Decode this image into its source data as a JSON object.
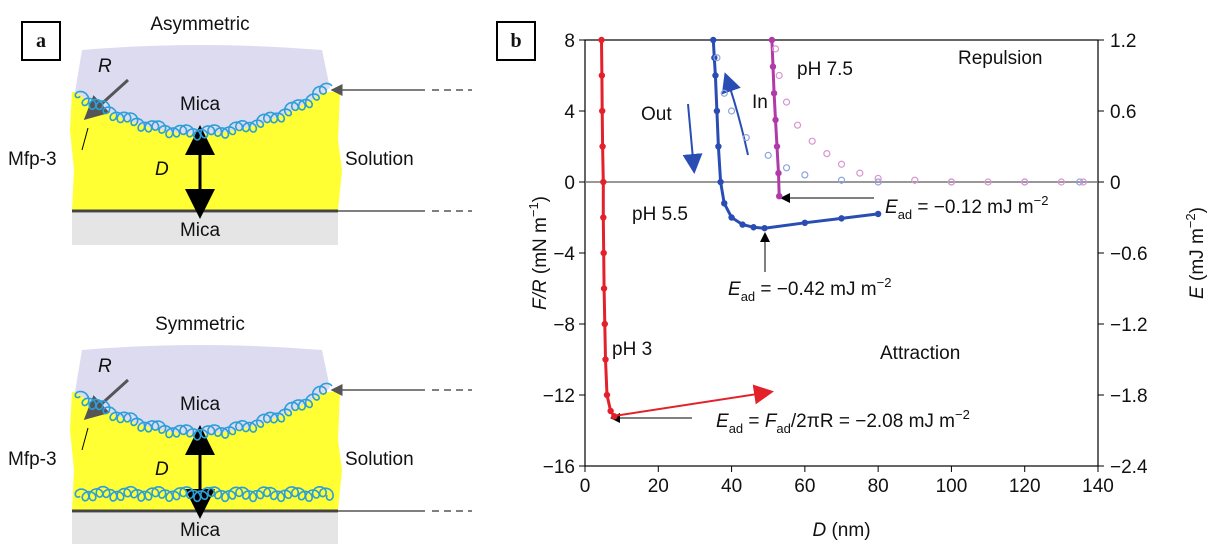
{
  "panel_a": {
    "label": "a",
    "top": {
      "title": "Asymmetric",
      "radius": "R",
      "upper_surface": "Mica",
      "coating": "Mfp-3",
      "distance": "D",
      "medium": "Solution",
      "lower_surface": "Mica"
    },
    "bottom": {
      "title": "Symmetric",
      "radius": "R",
      "upper_surface": "Mica",
      "coating": "Mfp-3",
      "distance": "D",
      "medium": "Solution",
      "lower_surface": "Mica"
    }
  },
  "chart_data": {
    "type": "scatter",
    "panel_label": "b",
    "xlabel": [
      {
        "text": "D",
        "style": "italic"
      },
      {
        "text": " (nm)"
      }
    ],
    "ylabel": [
      {
        "text": "F/R",
        "style": "italic"
      },
      {
        "text": " (mN m"
      },
      {
        "text": "−1",
        "style": "sup"
      },
      {
        "text": ")"
      }
    ],
    "y2label": [
      {
        "text": "E",
        "style": "italic"
      },
      {
        "text": " (mJ m"
      },
      {
        "text": "−2",
        "style": "sup"
      },
      {
        "text": ")"
      }
    ],
    "xlim": [
      0,
      140
    ],
    "xticks": [
      0,
      20,
      40,
      60,
      80,
      100,
      120,
      140
    ],
    "ylim": [
      -16,
      8
    ],
    "yticks": [
      8,
      4,
      0,
      {
        "value": -4,
        "label": "−4"
      },
      {
        "value": -8,
        "label": "−8"
      },
      {
        "value": -12,
        "label": "−12"
      },
      {
        "value": -16,
        "label": "−16"
      }
    ],
    "y2lim": [
      -2.4,
      1.2
    ],
    "y2ticks": [
      1.2,
      0.6,
      0,
      {
        "value": -0.6,
        "label": "−0.6"
      },
      {
        "value": -1.2,
        "label": "−1.2"
      },
      {
        "value": -1.8,
        "label": "−1.8"
      },
      {
        "value": -2.4,
        "label": "−2.4"
      }
    ],
    "zero_line": true,
    "series": [
      {
        "name": "pH 3",
        "color": "#e3212b",
        "filled": true,
        "x": [
          4.5,
          4.6,
          4.7,
          4.8,
          5,
          5,
          5.1,
          5.2,
          5.4,
          5.6,
          6,
          7,
          8
        ],
        "values": [
          8,
          6,
          4,
          2,
          0,
          -2,
          -4,
          -6,
          -8,
          -10,
          -12,
          -12.9,
          -13.2
        ]
      },
      {
        "name": "pH 5.5",
        "color": "#2a4db3",
        "filled": true,
        "x": [
          35,
          35.3,
          35.6,
          36,
          36.4,
          37,
          38,
          40,
          43,
          46,
          49,
          60,
          70,
          80
        ],
        "values": [
          8,
          7,
          6,
          4,
          2,
          0,
          -1.2,
          -2,
          -2.4,
          -2.55,
          -2.6,
          -2.3,
          -2.05,
          -1.8
        ]
      },
      {
        "name": "pH 5.5",
        "color": "#8ea3dc",
        "filled": false,
        "x": [
          36,
          38,
          40,
          44,
          50,
          55,
          60,
          70,
          80,
          100,
          120,
          135
        ],
        "values": [
          7,
          5,
          4,
          2.5,
          1.5,
          0.8,
          0.4,
          0.1,
          0,
          0,
          0,
          0
        ]
      },
      {
        "name": "pH 7.5",
        "color": "#b03aa8",
        "filled": true,
        "x": [
          51,
          51.3,
          51.6,
          52,
          52.4,
          52.8,
          53
        ],
        "values": [
          8,
          6.5,
          5,
          3.5,
          2,
          0.5,
          -0.8
        ]
      },
      {
        "name": "pH 7.5",
        "color": "#d994d0",
        "filled": false,
        "x": [
          52,
          53,
          55,
          58,
          62,
          66,
          70,
          75,
          80,
          90,
          100,
          110,
          120,
          130,
          136
        ],
        "values": [
          7.5,
          6,
          4.5,
          3.2,
          2.3,
          1.6,
          1,
          0.5,
          0.2,
          0.1,
          0,
          0,
          0,
          0,
          0
        ]
      }
    ],
    "annotations": [
      [
        {
          "text": "Out"
        }
      ],
      [
        {
          "text": "In"
        }
      ],
      [
        {
          "text": "pH 7.5"
        }
      ],
      [
        {
          "text": "Repulsion"
        }
      ],
      [
        {
          "text": "pH 5.5"
        }
      ],
      [
        {
          "text": "E",
          "style": "italic"
        },
        {
          "text": "ad",
          "style": "sub"
        },
        {
          "text": " = −0.12 mJ m"
        },
        {
          "text": "−2",
          "style": "sup"
        }
      ],
      [
        {
          "text": "E",
          "style": "italic"
        },
        {
          "text": "ad",
          "style": "sub"
        },
        {
          "text": " = −0.42 mJ m"
        },
        {
          "text": "−2",
          "style": "sup"
        }
      ],
      [
        {
          "text": "pH 3"
        }
      ],
      [
        {
          "text": "Attraction"
        }
      ],
      [
        {
          "text": "E",
          "style": "italic"
        },
        {
          "text": "ad",
          "style": "sub"
        },
        {
          "text": " = "
        },
        {
          "text": "F",
          "style": "italic"
        },
        {
          "text": "ad",
          "style": "sub"
        },
        {
          "text": "/2πR = −2.08 mJ m"
        },
        {
          "text": "−2",
          "style": "sup"
        }
      ]
    ]
  }
}
